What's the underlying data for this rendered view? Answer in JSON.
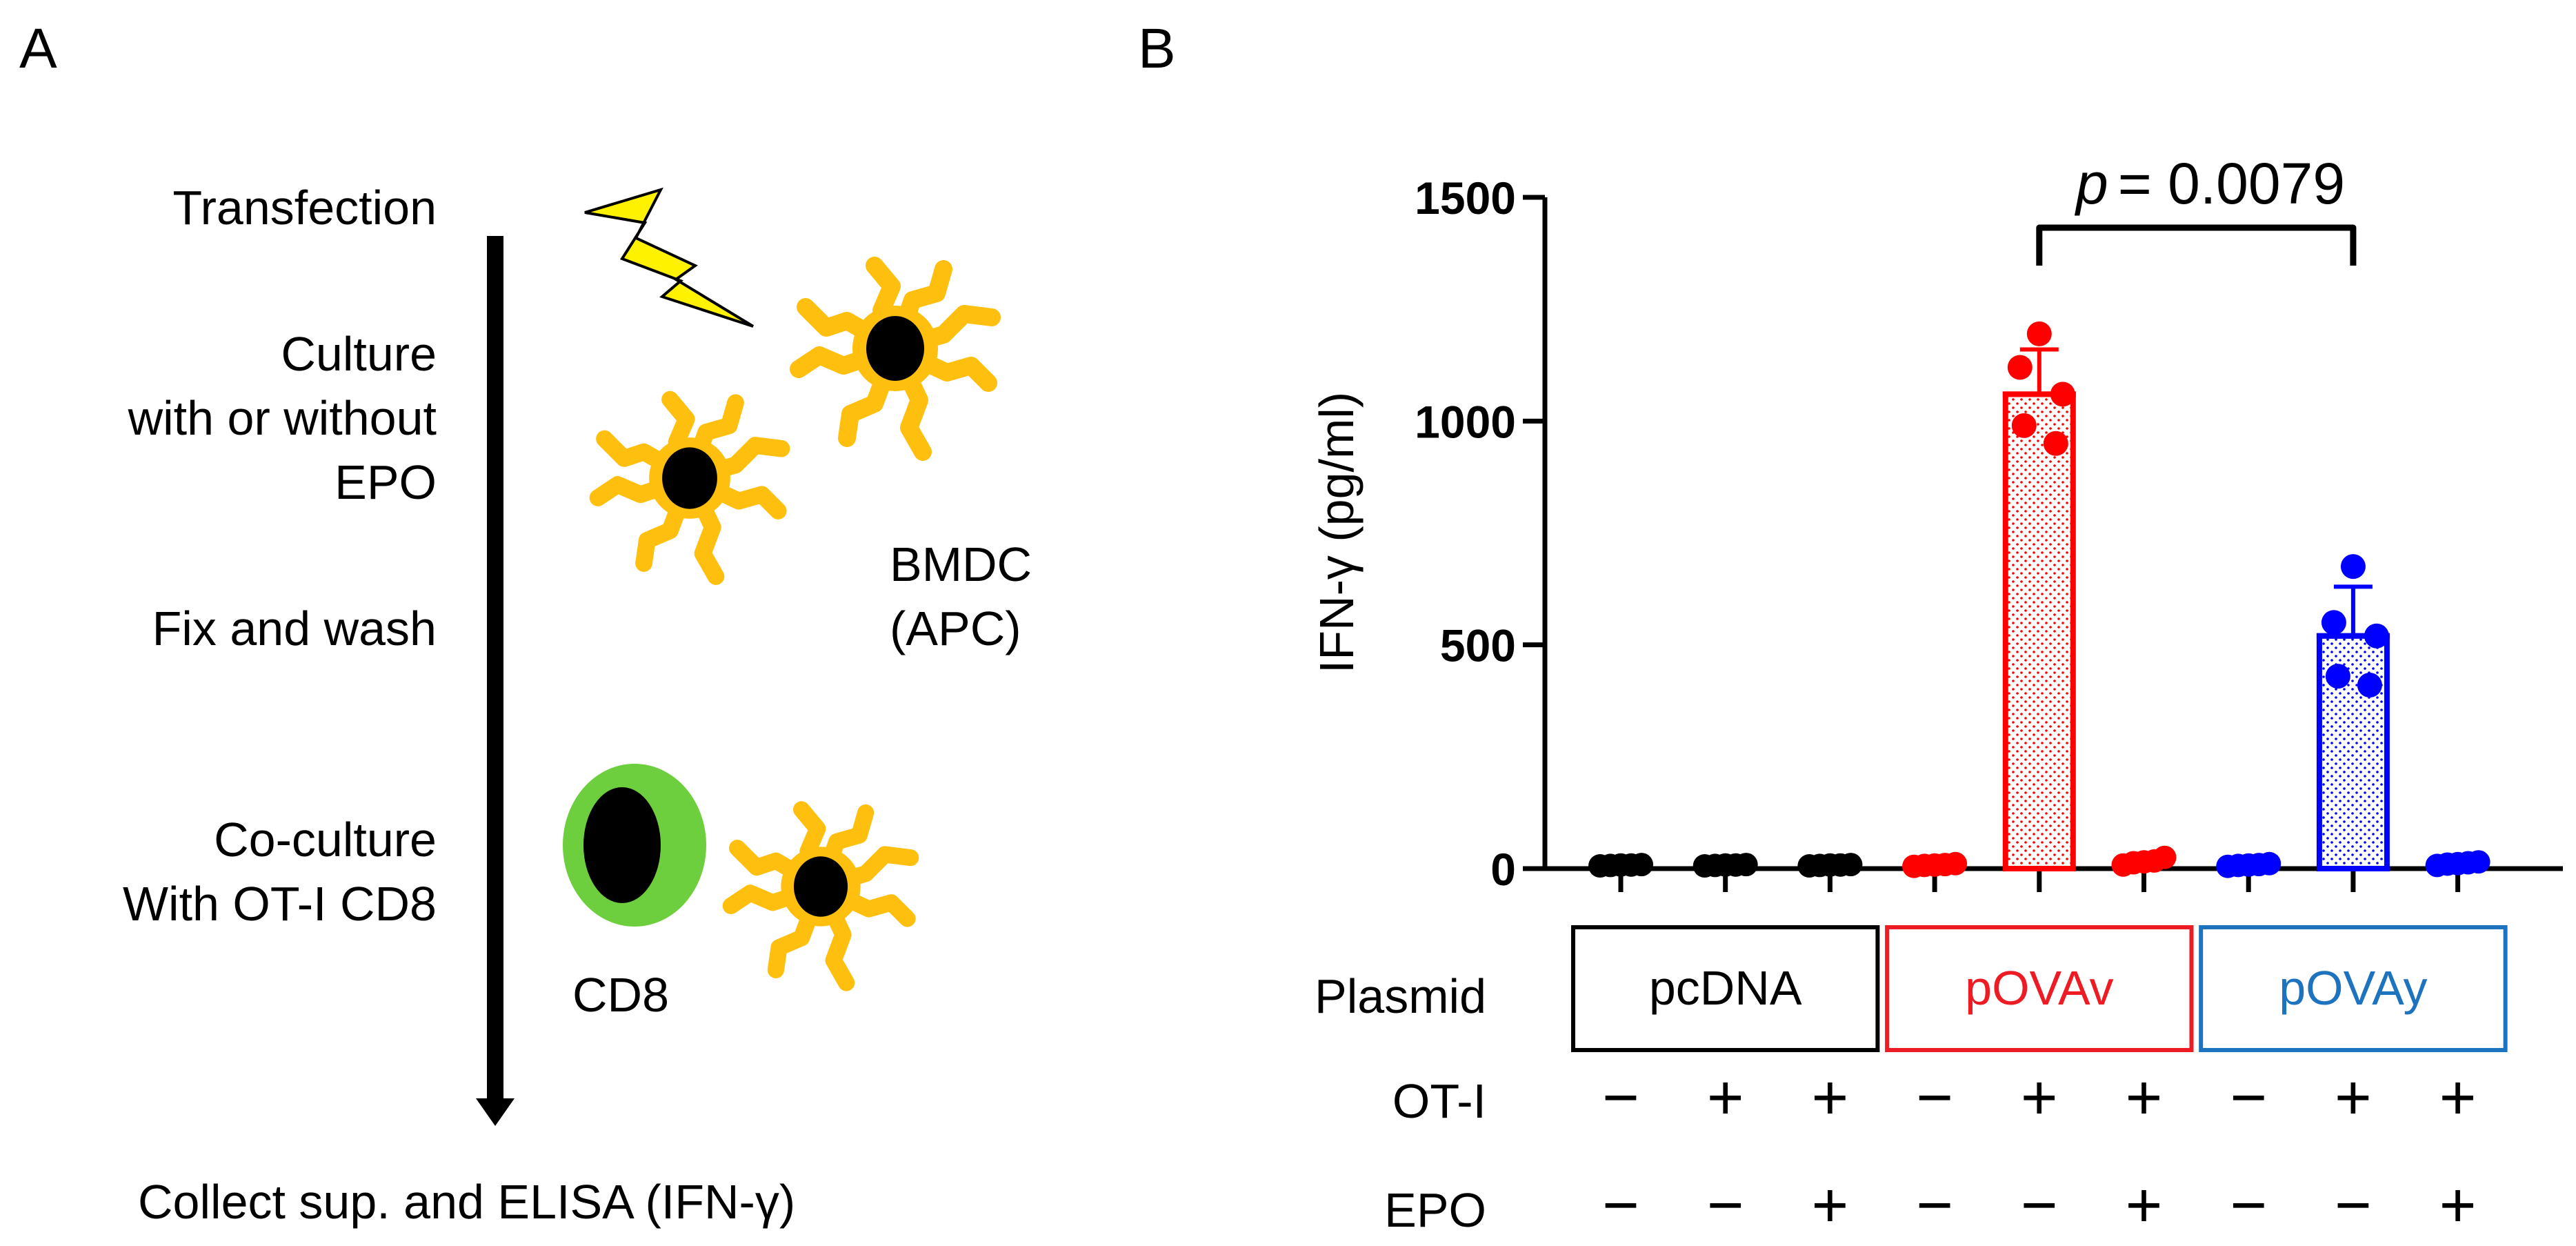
{
  "panel_a": {
    "letter": "A",
    "steps": {
      "transfection": "Transfection",
      "culture_1": "Culture",
      "culture_2": "with or without",
      "culture_3": "EPO",
      "fix": "Fix and wash",
      "coculture_1": "Co-culture",
      "coculture_2": "With OT-I CD8",
      "collect": "Collect sup. and ELISA (IFN-γ)"
    },
    "labels": {
      "bmdc_1": "BMDC",
      "bmdc_2": "(APC)",
      "cd8": "CD8"
    },
    "colors": {
      "dc": "#FFBF0F",
      "nucleus": "#000000",
      "cd8_ring": "#6DCF3E",
      "bolt": "#FFF200"
    },
    "icons": [
      "lightning-bolt-icon",
      "dendritic-cell-icon",
      "cd8-t-cell-icon"
    ]
  },
  "panel_b": {
    "letter": "B",
    "groups": {
      "row_labels": {
        "plasmid": "Plasmid",
        "ot1": "OT-I",
        "epo": "EPO"
      },
      "plasmids": [
        {
          "name": "pcDNA",
          "color": "#000000"
        },
        {
          "name": "pOVAv",
          "color": "#ED1C24"
        },
        {
          "name": "pOVAy",
          "color": "#1E73BE"
        }
      ],
      "ot1_signs": [
        "−",
        "+",
        "+",
        "−",
        "+",
        "+",
        "−",
        "+",
        "+"
      ],
      "epo_signs": [
        "−",
        "−",
        "+",
        "−",
        "−",
        "+",
        "−",
        "−",
        "+"
      ]
    }
  },
  "chart_data": {
    "type": "bar",
    "ylabel": "IFN-γ (pg/ml)",
    "ylim": [
      0,
      1500
    ],
    "yticks": [
      "0",
      "500",
      "1000",
      "1500"
    ],
    "significance": {
      "p_symbol": "p",
      "p_value": "= 0.0079",
      "between": [
        5,
        8
      ]
    },
    "series": [
      {
        "color": "#000000",
        "mean": 5,
        "sd": 0,
        "points": [
          3,
          4,
          5,
          5,
          6
        ]
      },
      {
        "color": "#000000",
        "mean": 5,
        "sd": 0,
        "points": [
          3,
          4,
          5,
          5,
          6
        ]
      },
      {
        "color": "#000000",
        "mean": 5,
        "sd": 0,
        "points": [
          3,
          4,
          5,
          5,
          6
        ]
      },
      {
        "color": "#FF0000",
        "mean": 5,
        "sd": 0,
        "points": [
          2,
          4,
          5,
          6,
          8
        ]
      },
      {
        "color": "#FF0000",
        "mean": 1060,
        "sd": 100,
        "points": [
          1195,
          1120,
          1060,
          990,
          950
        ],
        "hatched": true
      },
      {
        "color": "#FF0000",
        "mean": 12,
        "sd": 5,
        "points": [
          5,
          10,
          12,
          14,
          22
        ]
      },
      {
        "color": "#0000FF",
        "mean": 5,
        "sd": 0,
        "points": [
          2,
          4,
          5,
          6,
          8
        ]
      },
      {
        "color": "#0000FF",
        "mean": 520,
        "sd": 110,
        "points": [
          675,
          550,
          520,
          430,
          410
        ],
        "hatched": true
      },
      {
        "color": "#0000FF",
        "mean": 8,
        "sd": 3,
        "points": [
          4,
          7,
          8,
          10,
          12
        ]
      }
    ]
  }
}
